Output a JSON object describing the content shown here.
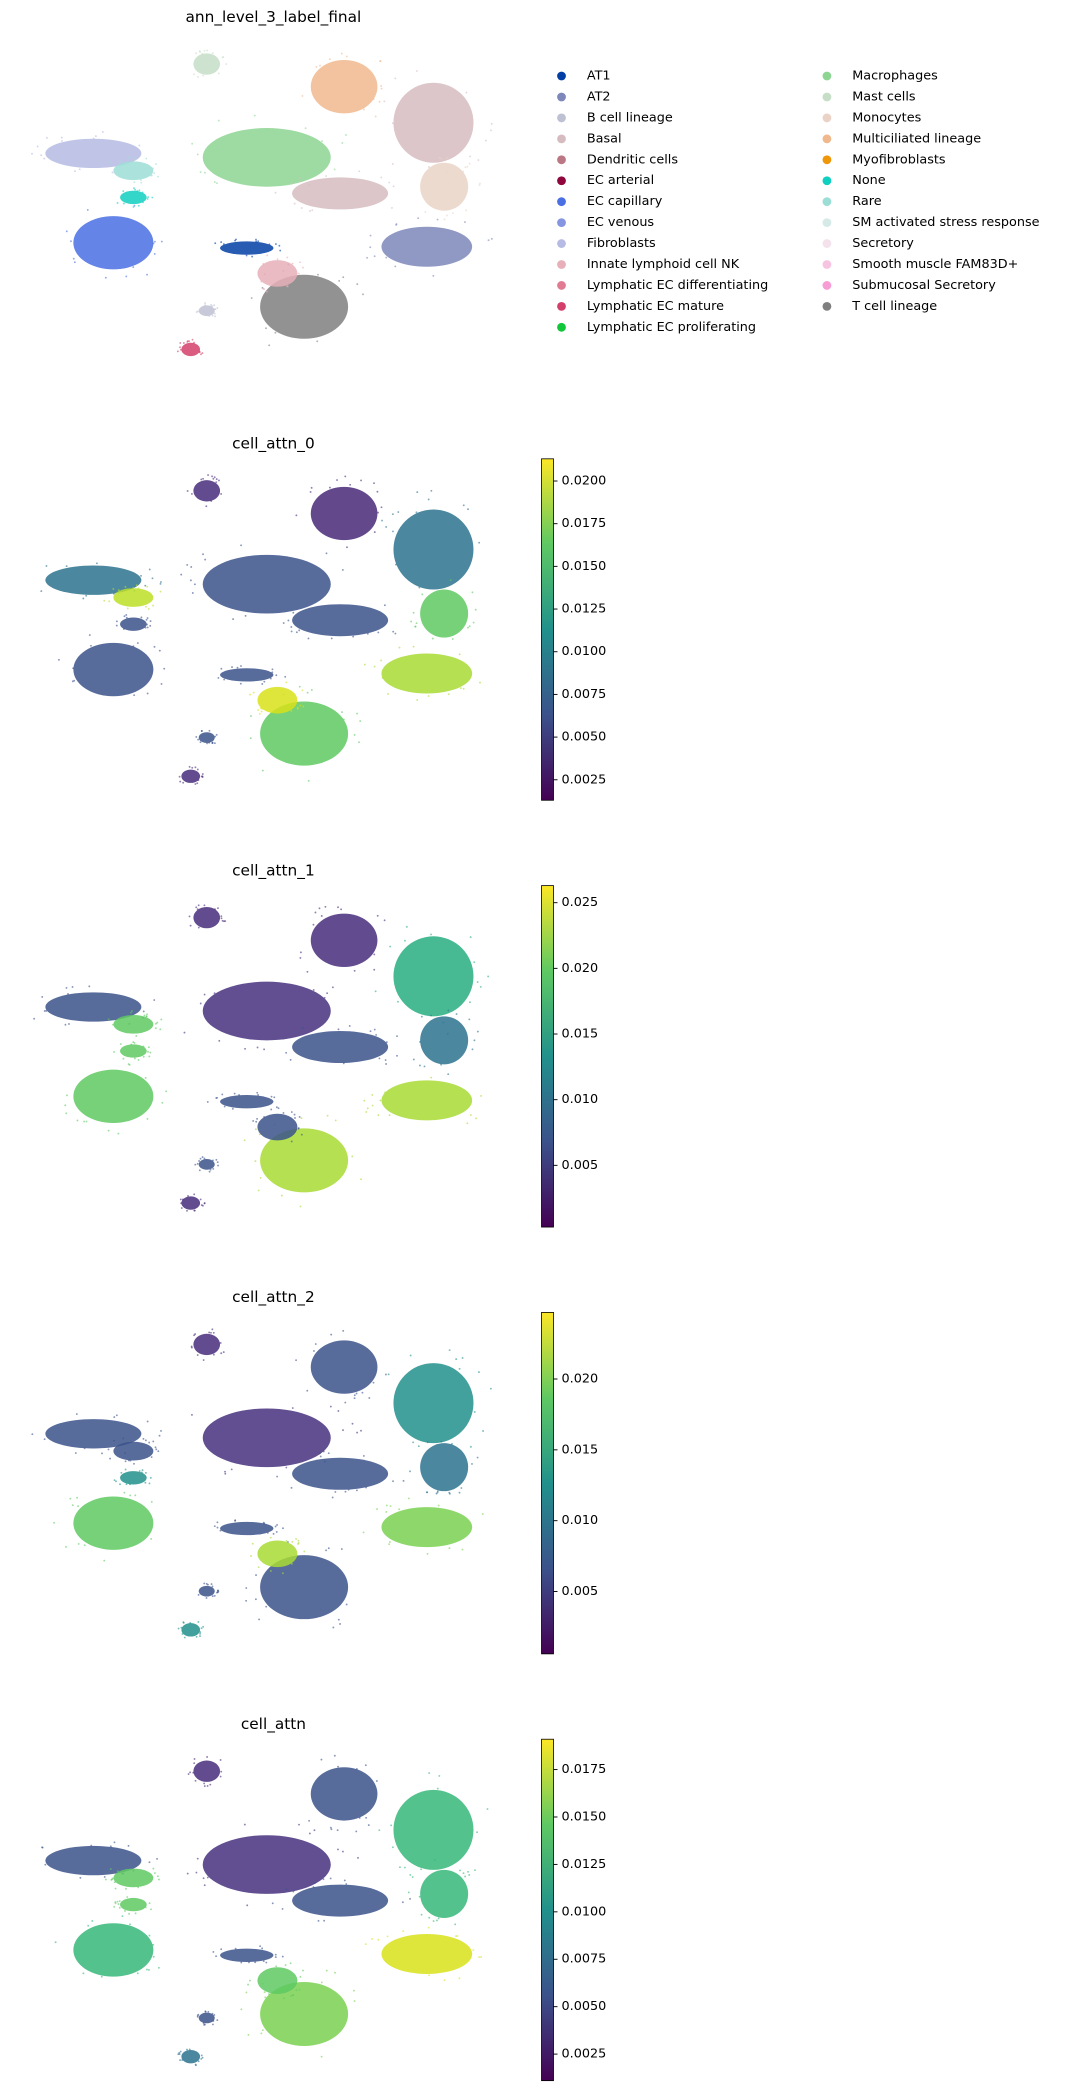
{
  "chart_data": [
    {
      "type": "scatter",
      "title": "ann_level_3_label_final",
      "legend": {
        "categories": [
          "AT1",
          "AT2",
          "B cell lineage",
          "Basal",
          "Dendritic cells",
          "EC arterial",
          "EC capillary",
          "EC venous",
          "Fibroblasts",
          "Innate lymphoid cell NK",
          "Lymphatic EC differentiating",
          "Lymphatic EC mature",
          "Lymphatic EC proliferating",
          "Macrophages",
          "Mast cells",
          "Monocytes",
          "Multiciliated lineage",
          "Myofibroblasts",
          "None",
          "Rare",
          "SM activated stress response",
          "Secretory",
          "Smooth muscle FAM83D+",
          "Submucosal Secretory",
          "T cell lineage"
        ],
        "colors": [
          "#023fa5",
          "#7d87b9",
          "#bec1d4",
          "#d6bcc0",
          "#bb7784",
          "#8e063b",
          "#4a6fe3",
          "#8595e1",
          "#b5bbe3",
          "#e6afb9",
          "#e07b91",
          "#d33f6a",
          "#11c638",
          "#8dd593",
          "#c6dec7",
          "#ead3c6",
          "#f0b98d",
          "#ef9708",
          "#0fcfc0",
          "#9cded6",
          "#d5eae7",
          "#f3e1eb",
          "#f6c4e1",
          "#f79cd4",
          "#7f7f7f"
        ]
      }
    },
    {
      "type": "scatter",
      "title": "cell_attn_0",
      "colorbar": {
        "lim": [
          0.0013,
          0.0213
        ],
        "ticks": [
          0.0025,
          {
            "value": 0.005,
            "label": "0.0050"
          },
          0.0075,
          {
            "value": 0.01,
            "label": "0.0100"
          },
          0.0125,
          {
            "value": 0.015,
            "label": "0.0150"
          },
          0.0175,
          {
            "value": 0.02,
            "label": "0.0200"
          }
        ]
      }
    },
    {
      "type": "scatter",
      "title": "cell_attn_1",
      "colorbar": {
        "lim": [
          0.0003,
          0.0263
        ],
        "ticks": [
          0.005,
          {
            "value": 0.01,
            "label": "0.010"
          },
          0.015,
          {
            "value": 0.02,
            "label": "0.020"
          },
          0.025
        ]
      }
    },
    {
      "type": "scatter",
      "title": "cell_attn_2",
      "colorbar": {
        "lim": [
          0.0006,
          0.0247
        ],
        "ticks": [
          0.005,
          {
            "value": 0.01,
            "label": "0.010"
          },
          0.015,
          {
            "value": 0.02,
            "label": "0.020"
          }
        ]
      }
    },
    {
      "type": "scatter",
      "title": "cell_attn",
      "colorbar": {
        "lim": [
          0.0011,
          0.0191
        ],
        "ticks": [
          0.0025,
          {
            "value": 0.005,
            "label": "0.0050"
          },
          0.0075,
          {
            "value": 0.01,
            "label": "0.0100"
          },
          0.0125,
          {
            "value": 0.015,
            "label": "0.0150"
          },
          0.0175
        ]
      }
    }
  ]
}
